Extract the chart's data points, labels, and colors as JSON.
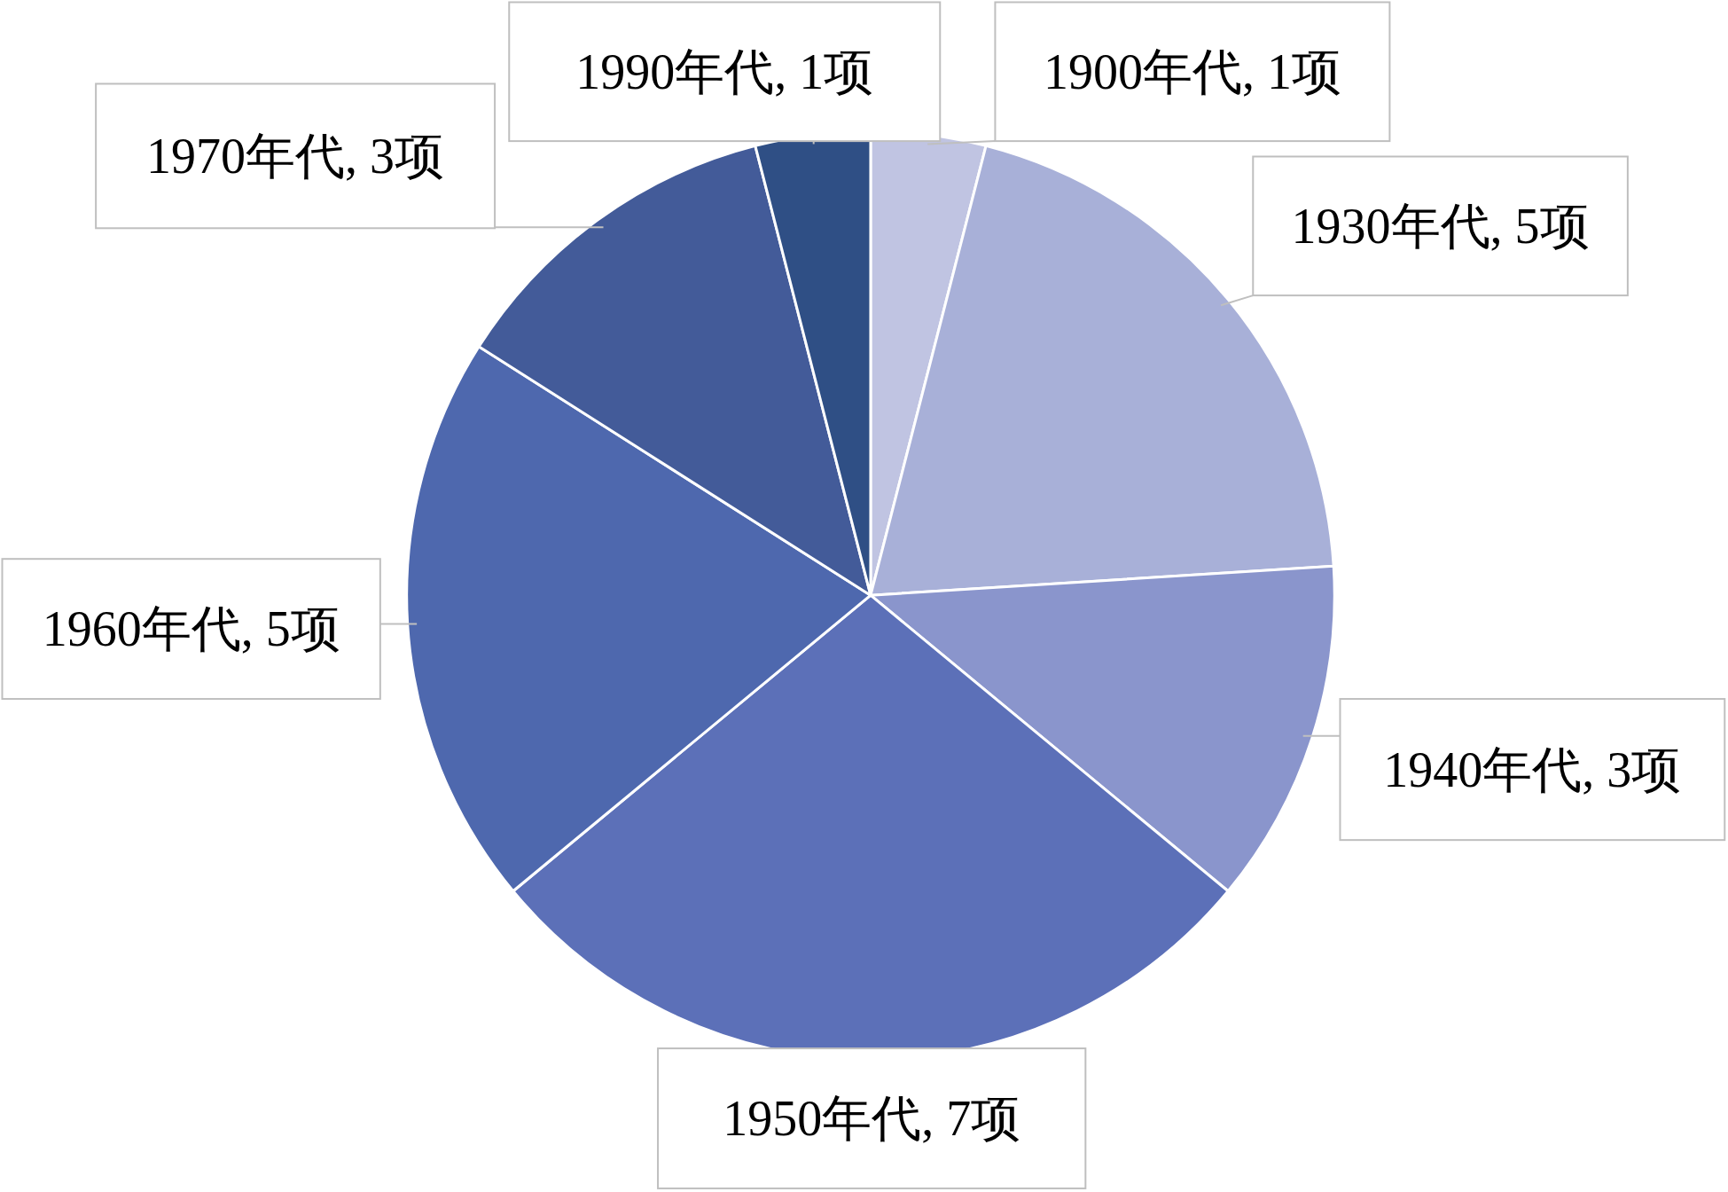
{
  "chart_data": {
    "type": "pie",
    "categories": [
      "1900年代",
      "1930年代",
      "1940年代",
      "1950年代",
      "1960年代",
      "1970年代",
      "1990年代"
    ],
    "values": [
      1,
      5,
      3,
      7,
      5,
      3,
      1
    ],
    "colors": [
      "#c0c4e2",
      "#a8b0d8",
      "#8a95cc",
      "#5c70b8",
      "#4e68ae",
      "#435b99",
      "#2f4f85"
    ],
    "value_labels": [
      "1项",
      "5项",
      "3项",
      "7项",
      "5项",
      "3项",
      "1项"
    ]
  }
}
